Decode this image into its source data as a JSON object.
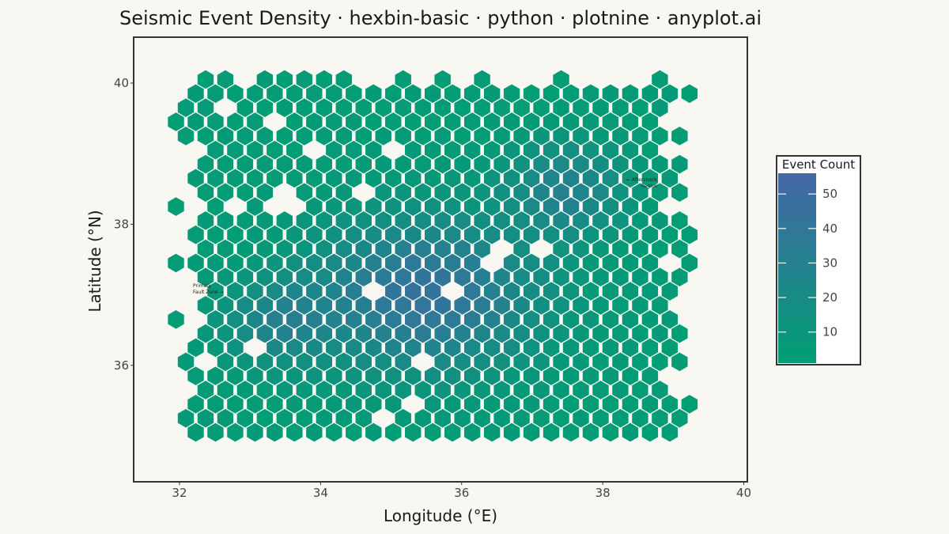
{
  "chart_data": {
    "type": "heatmap",
    "subtype": "hexbin",
    "title": "Seismic Event Density · hexbin-basic · python · plotnine · anyplot.ai",
    "xlabel": "Longitude (°E)",
    "ylabel": "Latitude (°N)",
    "xlim": [
      31.35,
      40.05
    ],
    "ylim": [
      34.35,
      40.65
    ],
    "xticks": [
      32,
      34,
      36,
      38,
      40
    ],
    "yticks": [
      36,
      38,
      40
    ],
    "legend": {
      "title": "Event Count",
      "position": "right",
      "ticks": [
        10,
        20,
        30,
        40,
        50
      ],
      "range": [
        1,
        56
      ],
      "color_low": "#009E73",
      "color_high": "#4467A8"
    },
    "hex_grid": {
      "x0": 31.95,
      "dx": 0.28,
      "y0": 35.05,
      "dy": 0.2
    }
  },
  "annotations": {
    "primary": [
      "Primary",
      "Fault Zone →"
    ],
    "aftershock": [
      "← Aftershock",
      "Region"
    ]
  },
  "colors": {
    "background": "#F9F7F2",
    "panel_border": "#333333",
    "hex_edge": "#F9F7F2"
  }
}
